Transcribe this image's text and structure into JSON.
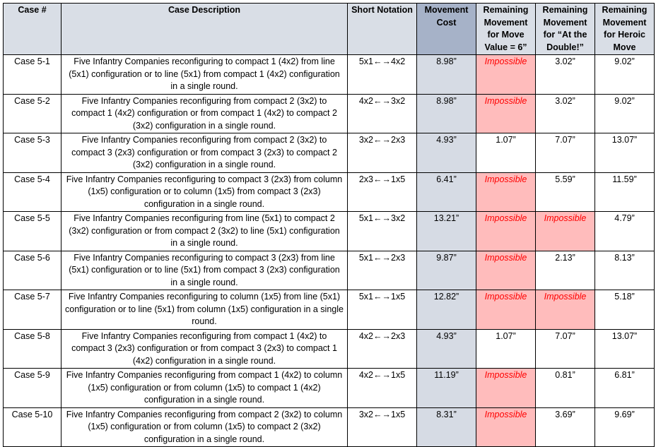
{
  "colors": {
    "header_bg": "#d9dee6",
    "movement_cost_header_bg": "#a6b2c8",
    "movement_cost_cell_bg": "#d6dbe4",
    "impossible_bg": "#ffbcbc",
    "impossible_text": "#ff0000"
  },
  "headers": {
    "case": "Case #",
    "description": "Case Description",
    "notation": "Short Notation",
    "cost": "Movement Cost",
    "rem6": "Remaining Movement for Move Value = 6”",
    "remDouble": "Remaining Movement for “At the Double!”",
    "remHeroic": "Remaining Movement for Heroic Move"
  },
  "rows": [
    {
      "case": "Case 5-1",
      "description": "Five Infantry Companies reconfiguring to compact 1 (4x2) from line (5x1) configuration or to line (5x1) from compact 1 (4x2) configuration in a single round.",
      "notation": "5x1←→4x2",
      "cost": "8.98”",
      "rem6": "Impossible",
      "rem6_impossible": true,
      "remDouble": "3.02”",
      "remDouble_impossible": false,
      "remHeroic": "9.02”"
    },
    {
      "case": "Case 5-2",
      "description": "Five Infantry Companies reconfiguring from compact 2 (3x2) to compact 1 (4x2) configuration or from compact 1 (4x2) to compact 2 (3x2) configuration in a single round.",
      "notation": "4x2←→3x2",
      "cost": "8.98”",
      "rem6": "Impossible",
      "rem6_impossible": true,
      "remDouble": "3.02”",
      "remDouble_impossible": false,
      "remHeroic": "9.02”"
    },
    {
      "case": "Case 5-3",
      "description": "Five Infantry Companies reconfiguring from compact 2 (3x2) to compact 3 (2x3) configuration or from compact 3 (2x3) to compact 2 (3x2) configuration in a single round.",
      "notation": "3x2←→2x3",
      "cost": "4.93”",
      "rem6": "1.07”",
      "rem6_impossible": false,
      "remDouble": "7.07”",
      "remDouble_impossible": false,
      "remHeroic": "13.07”"
    },
    {
      "case": "Case 5-4",
      "description": "Five Infantry Companies reconfiguring to compact 3 (2x3) from column (1x5) configuration or to column (1x5) from compact 3 (2x3) configuration in a single round.",
      "notation": "2x3←→1x5",
      "cost": "6.41”",
      "rem6": "Impossible",
      "rem6_impossible": true,
      "remDouble": "5.59”",
      "remDouble_impossible": false,
      "remHeroic": "11.59”"
    },
    {
      "case": "Case 5-5",
      "description": "Five Infantry Companies reconfiguring from line (5x1) to compact 2 (3x2) configuration or from compact 2 (3x2) to line (5x1) configuration in a single round.",
      "notation": "5x1←→3x2",
      "cost": "13.21”",
      "rem6": "Impossible",
      "rem6_impossible": true,
      "remDouble": "Impossible",
      "remDouble_impossible": true,
      "remHeroic": "4.79”"
    },
    {
      "case": "Case 5-6",
      "description": "Five Infantry Companies reconfiguring to compact 3 (2x3) from line (5x1) configuration or to line (5x1) from compact 3 (2x3) configuration in a single round.",
      "notation": "5x1←→2x3",
      "cost": "9.87”",
      "rem6": "Impossible",
      "rem6_impossible": true,
      "remDouble": "2.13”",
      "remDouble_impossible": false,
      "remHeroic": "8.13”"
    },
    {
      "case": "Case 5-7",
      "description": "Five Infantry Companies reconfiguring to column (1x5) from line (5x1) configuration or to line (5x1) from column (1x5) configuration in a single round.",
      "notation": "5x1←→1x5",
      "cost": "12.82”",
      "rem6": "Impossible",
      "rem6_impossible": true,
      "remDouble": "Impossible",
      "remDouble_impossible": true,
      "remHeroic": "5.18”"
    },
    {
      "case": "Case 5-8",
      "description": "Five Infantry Companies reconfiguring from compact 1 (4x2) to compact 3 (2x3) configuration or from compact 3 (2x3) to compact 1 (4x2) configuration in a single round.",
      "notation": "4x2←→2x3",
      "cost": "4.93”",
      "rem6": "1.07”",
      "rem6_impossible": false,
      "remDouble": "7.07”",
      "remDouble_impossible": false,
      "remHeroic": "13.07”"
    },
    {
      "case": "Case 5-9",
      "description": "Five Infantry Companies reconfiguring from compact 1 (4x2) to column (1x5) configuration or from column (1x5) to compact 1 (4x2) configuration in a single round.",
      "notation": "4x2←→1x5",
      "cost": "11.19”",
      "rem6": "Impossible",
      "rem6_impossible": true,
      "remDouble": "0.81”",
      "remDouble_impossible": false,
      "remHeroic": "6.81”"
    },
    {
      "case": "Case 5-10",
      "description": "Five Infantry Companies reconfiguring from compact 2 (3x2) to column (1x5) configuration or from column (1x5) to compact 2 (3x2) configuration in a single round.",
      "notation": "3x2←→1x5",
      "cost": "8.31”",
      "rem6": "Impossible",
      "rem6_impossible": true,
      "remDouble": "3.69”",
      "remDouble_impossible": false,
      "remHeroic": "9.69”"
    }
  ]
}
